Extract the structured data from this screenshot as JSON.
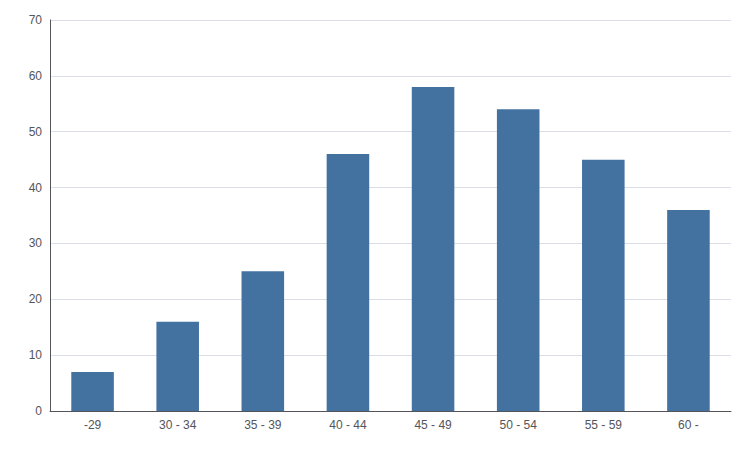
{
  "chart_data": {
    "type": "bar",
    "categories": [
      "-29",
      "30 - 34",
      "35 - 39",
      "40 - 44",
      "45 - 49",
      "50 - 54",
      "55 - 59",
      "60 -"
    ],
    "values": [
      7,
      16,
      25,
      46,
      58,
      54,
      45,
      36
    ],
    "color": "#4472a0",
    "ylim": [
      0,
      70
    ],
    "yticks": [
      0,
      10,
      20,
      30,
      40,
      50,
      60,
      70
    ],
    "grid": true
  }
}
